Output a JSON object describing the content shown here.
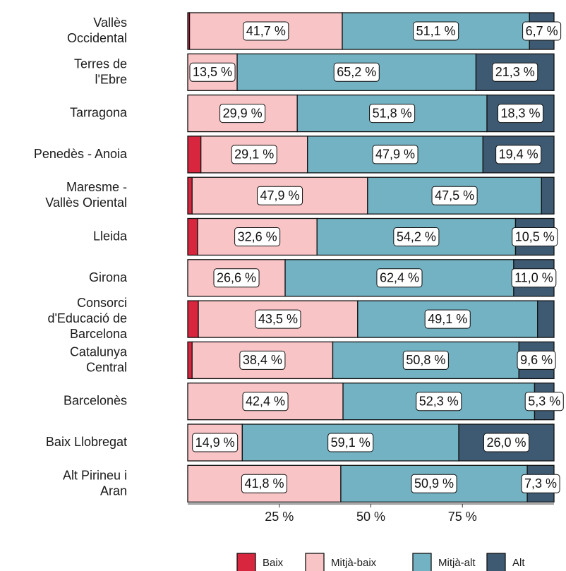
{
  "chart_data": {
    "type": "stacked_bar_horizontal",
    "categories": [
      "Vallès\nOccidental",
      "Terres de\nl'Ebre",
      "Tarragona",
      "Penedès - Anoia",
      "Maresme -\nVallès Oriental",
      "Lleida",
      "Girona",
      "Consorci\nd'Educació de\nBarcelona",
      "Catalunya\nCentral",
      "Barcelonès",
      "Baix Llobregat",
      "Alt Pirineu i\nAran"
    ],
    "series": [
      {
        "name": "Baix",
        "color": "#d7263d",
        "values": [
          0.5,
          0,
          0,
          3.6,
          1.2,
          2.7,
          0,
          2.9,
          1.2,
          0,
          0,
          0
        ],
        "value_labels": [
          null,
          null,
          null,
          null,
          null,
          null,
          null,
          null,
          null,
          null,
          null,
          null
        ]
      },
      {
        "name": "Mitjà-baix",
        "color": "#f8c4c6",
        "values": [
          41.7,
          13.5,
          29.9,
          29.1,
          47.9,
          32.6,
          26.6,
          43.5,
          38.4,
          42.4,
          14.9,
          41.8
        ],
        "value_labels": [
          "41,7 %",
          "13,5 %",
          "29,9 %",
          "29,1 %",
          "47,9 %",
          "32,6 %",
          "26,6 %",
          "43,5 %",
          "38,4 %",
          "42,4 %",
          "14,9 %",
          "41,8 %"
        ]
      },
      {
        "name": "Mitjà-alt",
        "color": "#73b2c2",
        "values": [
          51.1,
          65.2,
          51.8,
          47.9,
          47.5,
          54.2,
          62.4,
          49.1,
          50.8,
          52.3,
          59.1,
          50.9
        ],
        "value_labels": [
          "51,1 %",
          "65,2 %",
          "51,8 %",
          "47,9 %",
          "47,5 %",
          "54,2 %",
          "62,4 %",
          "49,1 %",
          "50,8 %",
          "52,3 %",
          "59,1 %",
          "50,9 %"
        ]
      },
      {
        "name": "Alt",
        "color": "#3e5a72",
        "values": [
          6.7,
          21.3,
          18.3,
          19.4,
          3.4,
          10.5,
          11.0,
          4.5,
          9.6,
          5.3,
          26.0,
          7.3
        ],
        "value_labels": [
          "6,7 %",
          "21,3 %",
          "18,3 %",
          "19,4 %",
          null,
          "10,5 %",
          "11,0 %",
          null,
          "9,6 %",
          "5,3 %",
          "26,0 %",
          "7,3 %"
        ]
      }
    ],
    "xlim": [
      0,
      100
    ],
    "xticks": [
      {
        "value": 25,
        "label": "25 %"
      },
      {
        "value": 50,
        "label": "50 %"
      },
      {
        "value": 75,
        "label": "75 %"
      }
    ],
    "legend": "bottom"
  }
}
